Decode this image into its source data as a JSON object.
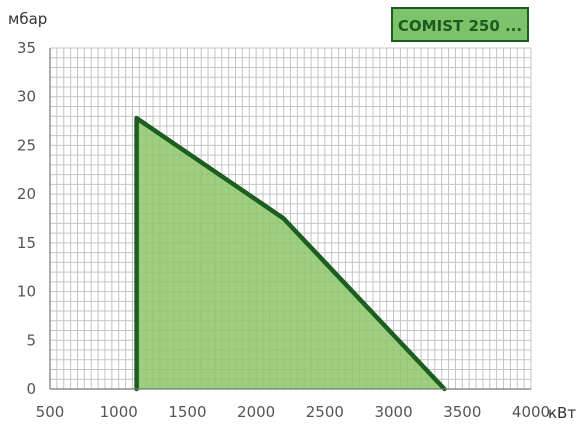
{
  "chart_data": {
    "type": "area",
    "ylabel": "мбар",
    "xlabel": "кВт",
    "legend": "COMIST 250 ...",
    "legend_position": "top-right",
    "grid": true,
    "xlim": [
      500,
      4000
    ],
    "ylim": [
      0,
      35
    ],
    "x_ticks": [
      500,
      1000,
      1500,
      2000,
      2500,
      3000,
      3500,
      4000
    ],
    "y_ticks": [
      0,
      5,
      10,
      15,
      20,
      25,
      30,
      35
    ],
    "series": [
      {
        "x": [
          1130,
          1130,
          2200,
          3370
        ],
        "y": [
          0,
          27.8,
          17.5,
          0
        ]
      }
    ],
    "colors": {
      "fill": "#8dc66a",
      "outline": "#1b5e20",
      "grid": "#c4c4c4",
      "legend_border": "#1e5a1e",
      "legend_bg": "#7cc36b"
    }
  }
}
